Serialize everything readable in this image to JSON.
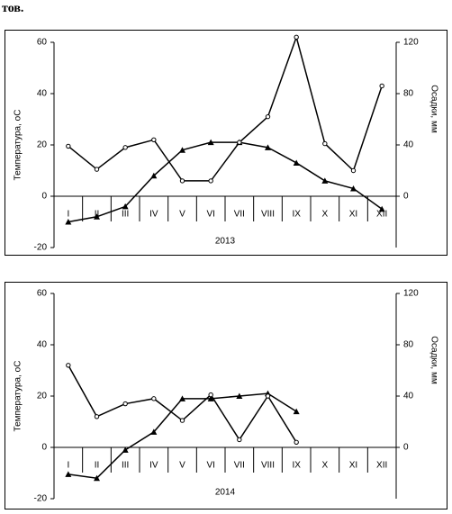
{
  "header_text": "тов.",
  "chart_data": [
    {
      "type": "line",
      "xlabel": "2013",
      "ylabel": "Температура, оС",
      "y2label": "Осадки, мм",
      "categories": [
        "I",
        "II",
        "III",
        "IV",
        "V",
        "VI",
        "VII",
        "VIII",
        "IX",
        "X",
        "XI",
        "XII"
      ],
      "series": [
        {
          "color": "#000000",
          "marker": "triangle",
          "values": [
            -10,
            -8,
            -4,
            8,
            18,
            21,
            21,
            19,
            13,
            6,
            3,
            -5
          ]
        },
        {
          "color": "#000000",
          "marker": "circle",
          "axis": "y2",
          "values": [
            39,
            21,
            38,
            44,
            12,
            12,
            42,
            62,
            124,
            41,
            20,
            86
          ]
        }
      ],
      "ylim": [
        -20,
        60
      ],
      "yticks": [
        -20,
        0,
        20,
        40,
        60
      ],
      "y2lim": [
        -40,
        120
      ],
      "y2ticks": [
        0,
        40,
        80,
        120
      ]
    },
    {
      "type": "line",
      "xlabel": "2014",
      "ylabel": "Температура, оС",
      "y2label": "Осадки, мм",
      "categories": [
        "I",
        "II",
        "III",
        "IV",
        "V",
        "VI",
        "VII",
        "VIII",
        "IX",
        "X",
        "XI",
        "XII"
      ],
      "series": [
        {
          "color": "#000000",
          "marker": "triangle",
          "values": [
            -10.5,
            -12,
            -1,
            6,
            19,
            19,
            20,
            21,
            14,
            null,
            null,
            null
          ]
        },
        {
          "color": "#000000",
          "marker": "circle",
          "axis": "y2",
          "values": [
            64,
            24,
            34,
            38,
            21,
            41,
            6,
            40,
            4,
            null,
            null,
            null
          ]
        }
      ],
      "ylim": [
        -20,
        60
      ],
      "yticks": [
        -20,
        0,
        20,
        40,
        60
      ],
      "y2lim": [
        -40,
        120
      ],
      "y2ticks": [
        0,
        40,
        80,
        120
      ]
    }
  ]
}
